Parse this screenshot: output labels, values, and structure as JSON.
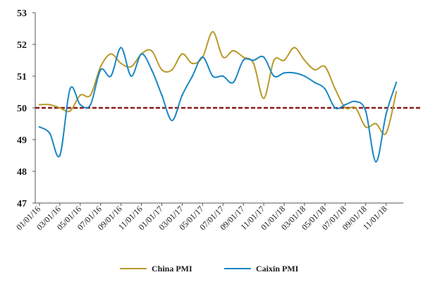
{
  "chart_data": {
    "type": "line",
    "title": "",
    "xlabel": "",
    "ylabel": "",
    "ylim": [
      47,
      53
    ],
    "yticks": [
      "47",
      "48",
      "49",
      "50",
      "51",
      "52",
      "53"
    ],
    "x_tick_labels": [
      "01/01/16",
      "03/01/16",
      "05/01/16",
      "07/01/16",
      "09/01/16",
      "11/01/16",
      "01/01/17",
      "03/01/17",
      "05/01/17",
      "07/01/17",
      "09/01/17",
      "11/01/17",
      "01/01/18",
      "03/01/18",
      "05/01/18",
      "07/01/18",
      "09/01/18",
      "11/01/18"
    ],
    "grid": false,
    "legend_position": "bottom",
    "reference_line": {
      "value": 50,
      "color": "#8b1a1a",
      "style": "dashed"
    },
    "series": [
      {
        "name": "China PMI",
        "color": "#b99a2a",
        "points": [
          [
            "01/01/16",
            50.1
          ],
          [
            "02/01/16",
            50.1
          ],
          [
            "03/01/16",
            50.0
          ],
          [
            "04/01/16",
            49.9
          ],
          [
            "05/01/16",
            50.4
          ],
          [
            "06/01/16",
            50.4
          ],
          [
            "07/01/16",
            51.3
          ],
          [
            "08/01/16",
            51.7
          ],
          [
            "09/01/16",
            51.4
          ],
          [
            "10/01/16",
            51.3
          ],
          [
            "11/01/16",
            51.7
          ],
          [
            "12/01/16",
            51.8
          ],
          [
            "01/01/17",
            51.2
          ],
          [
            "02/01/17",
            51.2
          ],
          [
            "03/01/17",
            51.7
          ],
          [
            "04/01/17",
            51.4
          ],
          [
            "05/01/17",
            51.6
          ],
          [
            "06/01/17",
            52.4
          ],
          [
            "07/01/17",
            51.6
          ],
          [
            "08/01/17",
            51.8
          ],
          [
            "09/01/17",
            51.6
          ],
          [
            "10/01/17",
            51.4
          ],
          [
            "11/01/17",
            50.3
          ],
          [
            "12/01/17",
            51.5
          ],
          [
            "01/01/18",
            51.5
          ],
          [
            "02/01/18",
            51.9
          ],
          [
            "03/01/18",
            51.5
          ],
          [
            "04/01/18",
            51.2
          ],
          [
            "05/01/18",
            51.3
          ],
          [
            "06/01/18",
            50.6
          ],
          [
            "07/01/18",
            50.0
          ],
          [
            "08/01/18",
            50.0
          ],
          [
            "09/01/18",
            49.4
          ],
          [
            "10/01/18",
            49.5
          ],
          [
            "11/01/18",
            49.2
          ],
          [
            "12/01/18",
            50.5
          ]
        ]
      },
      {
        "name": "Caixin PMI",
        "color": "#1b87c4",
        "points": [
          [
            "01/01/16",
            49.4
          ],
          [
            "02/01/16",
            49.2
          ],
          [
            "03/01/16",
            48.5
          ],
          [
            "04/01/16",
            50.6
          ],
          [
            "05/01/16",
            50.1
          ],
          [
            "06/01/16",
            50.1
          ],
          [
            "07/01/16",
            51.2
          ],
          [
            "08/01/16",
            51.0
          ],
          [
            "09/01/16",
            51.9
          ],
          [
            "10/01/16",
            51.0
          ],
          [
            "11/01/16",
            51.7
          ],
          [
            "12/01/16",
            51.2
          ],
          [
            "01/01/17",
            50.4
          ],
          [
            "02/01/17",
            49.6
          ],
          [
            "03/01/17",
            50.4
          ],
          [
            "04/01/17",
            51.0
          ],
          [
            "05/01/17",
            51.6
          ],
          [
            "06/01/17",
            51.0
          ],
          [
            "07/01/17",
            51.0
          ],
          [
            "08/01/17",
            50.8
          ],
          [
            "09/01/17",
            51.5
          ],
          [
            "10/01/17",
            51.5
          ],
          [
            "11/01/17",
            51.6
          ],
          [
            "12/01/17",
            51.0
          ],
          [
            "01/01/18",
            51.1
          ],
          [
            "02/01/18",
            51.1
          ],
          [
            "03/01/18",
            51.0
          ],
          [
            "04/01/18",
            50.8
          ],
          [
            "05/01/18",
            50.6
          ],
          [
            "06/01/18",
            50.0
          ],
          [
            "07/01/18",
            50.1
          ],
          [
            "08/01/18",
            50.2
          ],
          [
            "09/01/18",
            49.9
          ],
          [
            "10/01/18",
            48.3
          ],
          [
            "11/01/18",
            49.8
          ],
          [
            "12/01/18",
            50.8
          ]
        ]
      }
    ]
  }
}
